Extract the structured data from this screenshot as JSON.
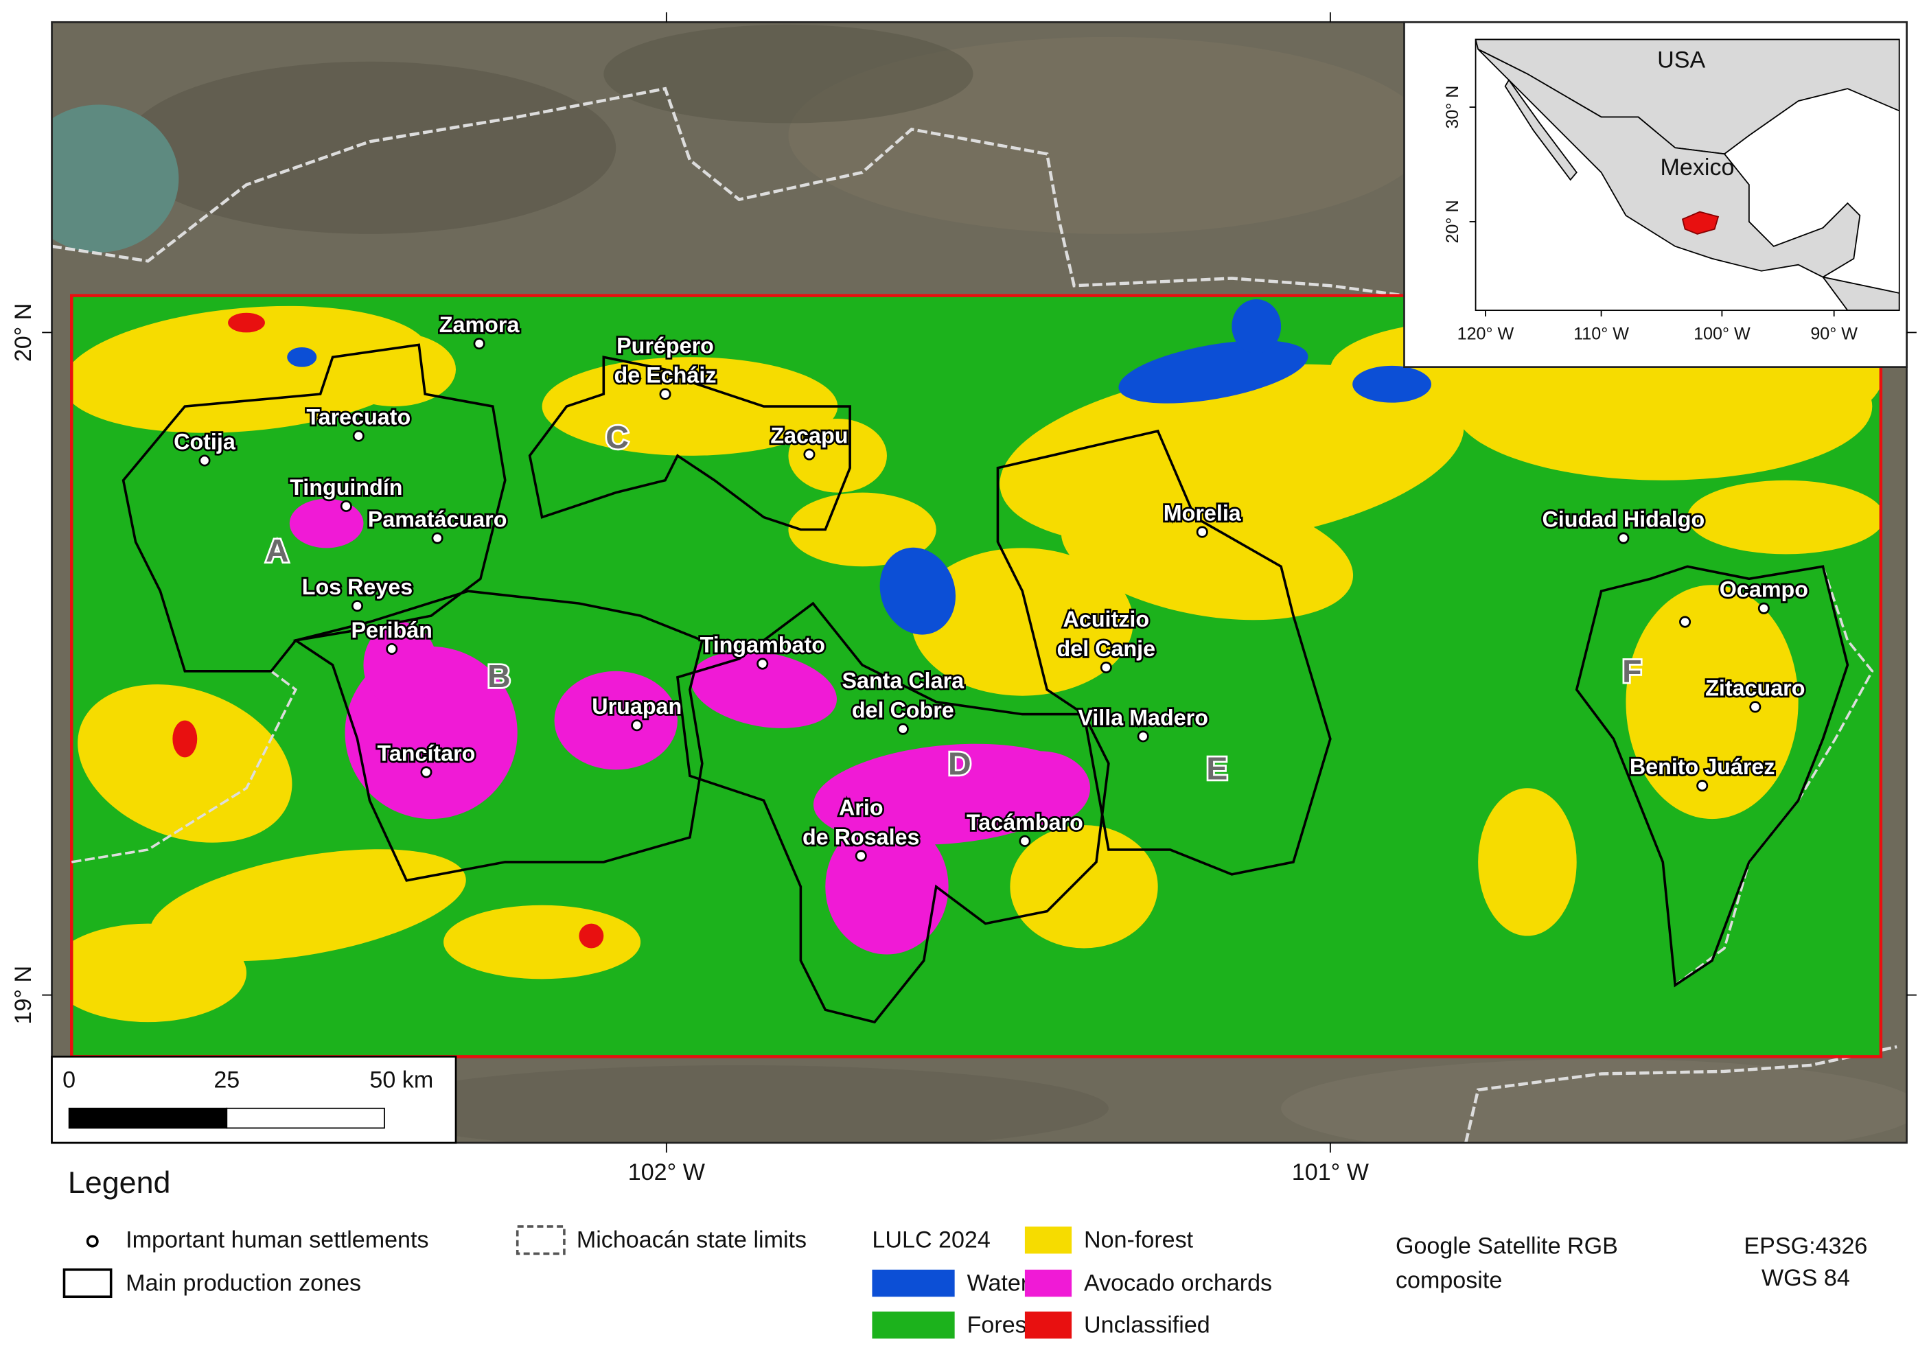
{
  "map": {
    "graticule": {
      "latitudes": [
        "20° N",
        "19° N"
      ],
      "longitudes": [
        "102° W",
        "101° W"
      ]
    },
    "settlements": [
      {
        "label": [
          "Zamora"
        ]
      },
      {
        "label": [
          "Purépero",
          "de Echáiz"
        ]
      },
      {
        "label": [
          "Cotija"
        ]
      },
      {
        "label": [
          "Tarecuato"
        ]
      },
      {
        "label": [
          "Tinguindín"
        ]
      },
      {
        "label": [
          "Pamatácuaro"
        ]
      },
      {
        "label": [
          "Los Reyes"
        ]
      },
      {
        "label": [
          "Peribán"
        ]
      },
      {
        "label": [
          "Uruapan"
        ]
      },
      {
        "label": [
          "Tancítaro"
        ]
      },
      {
        "label": [
          "Tingambato"
        ]
      },
      {
        "label": [
          "Santa Clara",
          "del Cobre"
        ]
      },
      {
        "label": [
          "Ario",
          "de Rosales"
        ]
      },
      {
        "label": [
          "Tacámbaro"
        ]
      },
      {
        "label": [
          "Villa Madero"
        ]
      },
      {
        "label": [
          "Acuitzio",
          "del Canje"
        ]
      },
      {
        "label": [
          "Morelia"
        ]
      },
      {
        "label": [
          "Zacapu"
        ]
      },
      {
        "label": [
          "Ciudad Hidalgo"
        ]
      },
      {
        "label": [
          "Ocampo"
        ]
      },
      {
        "label": [
          "Zitacuaro"
        ]
      },
      {
        "label": [
          "Benito Juárez"
        ]
      }
    ],
    "zones": [
      "A",
      "B",
      "C",
      "D",
      "E",
      "F"
    ],
    "scale_bar": {
      "ticks": [
        0,
        25,
        {
          "value": 50,
          "label": "50 km"
        }
      ]
    },
    "inset": {
      "labels": [
        "USA",
        "Mexico"
      ],
      "yticks": [
        "30° N",
        "20° N"
      ],
      "xticks": [
        "120° W",
        "110° W",
        "100° W",
        "90° W"
      ]
    }
  },
  "legend": {
    "title": "Legend",
    "settlements": "Important human settlements",
    "zones": "Main production zones",
    "state_limits": "Michoacán state limits",
    "lulc_title": "LULC 2024",
    "classes": [
      {
        "name": "Water",
        "color": "#0c4fd6"
      },
      {
        "name": "Forest",
        "color": "#1cb21c"
      },
      {
        "name": "Non-forest",
        "color": "#f6dc00"
      },
      {
        "name": "Avocado orchards",
        "color": "#f01ad6"
      },
      {
        "name": "Unclassified",
        "color": "#e81010"
      }
    ]
  },
  "credits": {
    "basemap": [
      "Google Satellite RGB",
      "composite"
    ],
    "crs": [
      "EPSG:4326",
      "WGS 84"
    ]
  }
}
